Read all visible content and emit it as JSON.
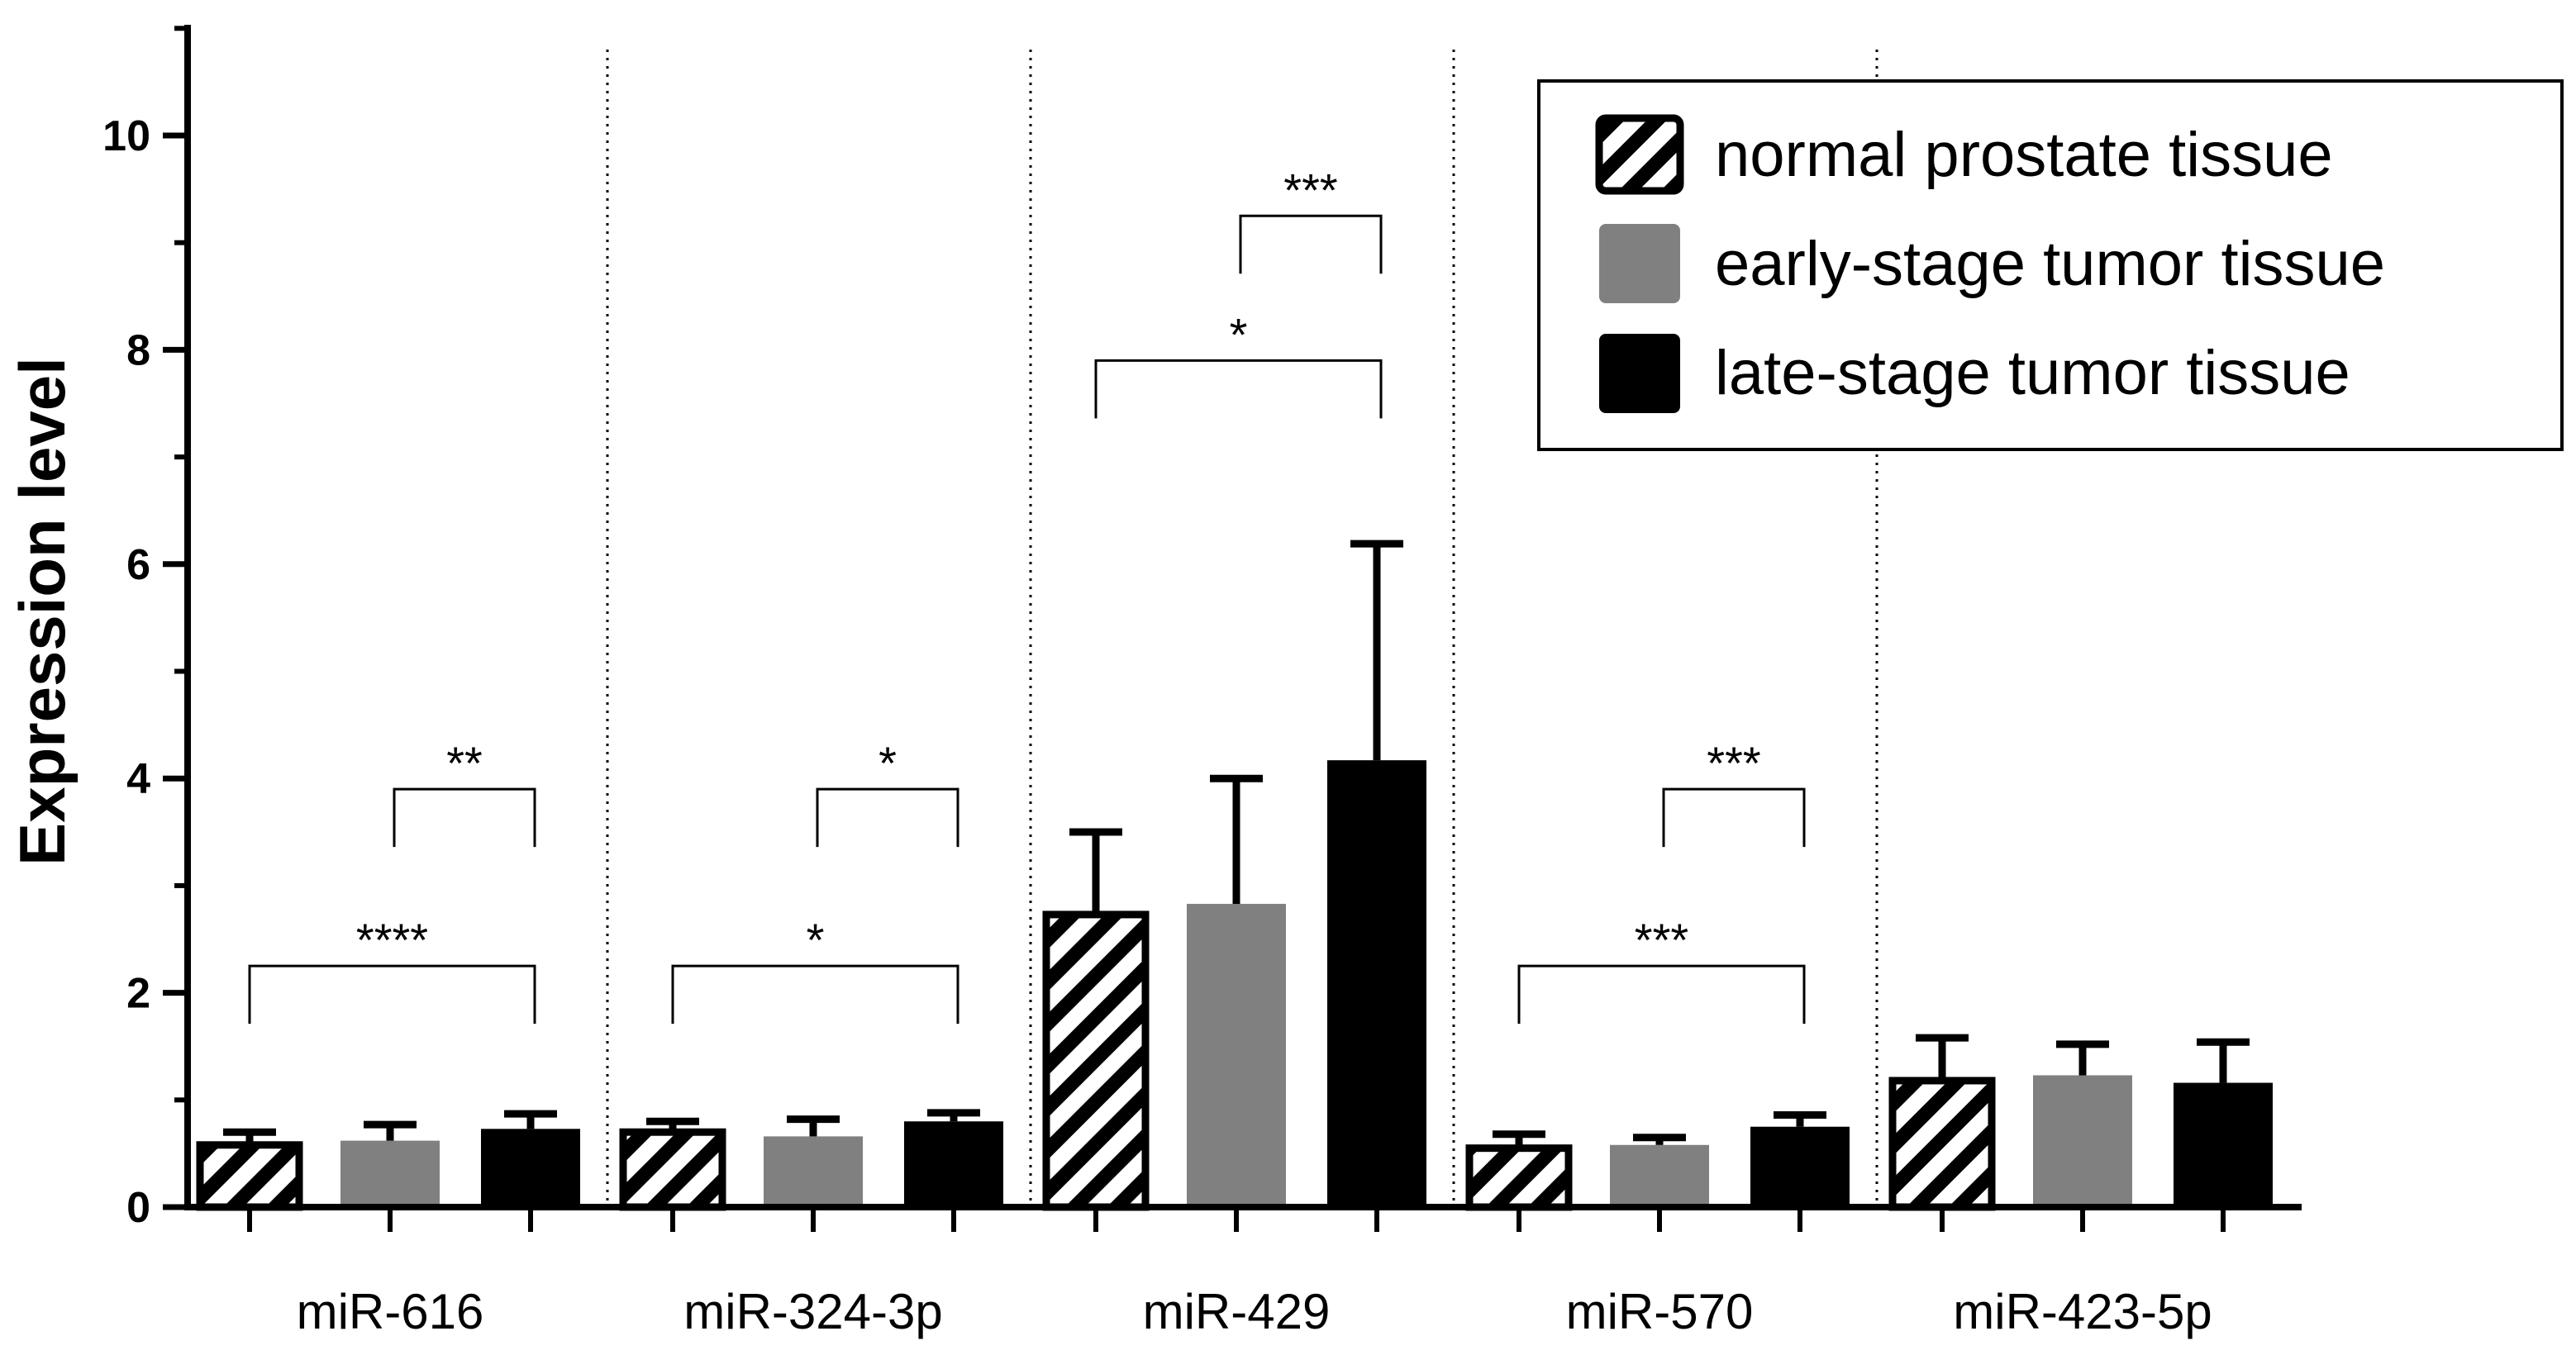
{
  "chart_data": {
    "type": "bar",
    "title": "",
    "xlabel": "",
    "ylabel": "Expression level",
    "ylim": [
      0,
      11
    ],
    "yticks": [
      "0",
      "2",
      "4",
      "6",
      "8",
      "10"
    ],
    "categories": [
      "miR-616",
      "miR-324-3p",
      "miR-429",
      "miR-570",
      "miR-423-5p"
    ],
    "series": [
      {
        "name": "normal prostate tissue",
        "style": "hatched",
        "values": [
          0.58,
          0.7,
          2.73,
          0.55,
          1.18
        ],
        "errors": [
          0.12,
          0.1,
          0.77,
          0.13,
          0.4
        ]
      },
      {
        "name": "early-stage tumor tissue",
        "style": "gray",
        "values": [
          0.62,
          0.66,
          2.83,
          0.58,
          1.23
        ],
        "errors": [
          0.15,
          0.16,
          1.17,
          0.07,
          0.29
        ]
      },
      {
        "name": "late-stage tumor tissue",
        "style": "black",
        "values": [
          0.73,
          0.8,
          4.17,
          0.75,
          1.16
        ],
        "errors": [
          0.14,
          0.08,
          2.02,
          0.11,
          0.38
        ]
      }
    ],
    "significance": [
      {
        "category": 0,
        "from": 1,
        "to": 2,
        "y": 3.9,
        "label": "**"
      },
      {
        "category": 0,
        "from": 0,
        "to": 2,
        "y": 2.25,
        "label": "****"
      },
      {
        "category": 1,
        "from": 1,
        "to": 2,
        "y": 3.9,
        "label": "*"
      },
      {
        "category": 1,
        "from": 0,
        "to": 2,
        "y": 2.25,
        "label": "*"
      },
      {
        "category": 2,
        "from": 1,
        "to": 2,
        "y": 9.25,
        "label": "***"
      },
      {
        "category": 2,
        "from": 0,
        "to": 2,
        "y": 7.9,
        "label": "*"
      },
      {
        "category": 3,
        "from": 1,
        "to": 2,
        "y": 3.9,
        "label": "***"
      },
      {
        "category": 3,
        "from": 0,
        "to": 2,
        "y": 2.25,
        "label": "***"
      }
    ],
    "legend_position": "top-right",
    "grid": false,
    "group_separators": "dotted"
  },
  "colors": {
    "gray": "#808080",
    "black": "#000000",
    "hatch": "#000000",
    "background": "#ffffff"
  }
}
